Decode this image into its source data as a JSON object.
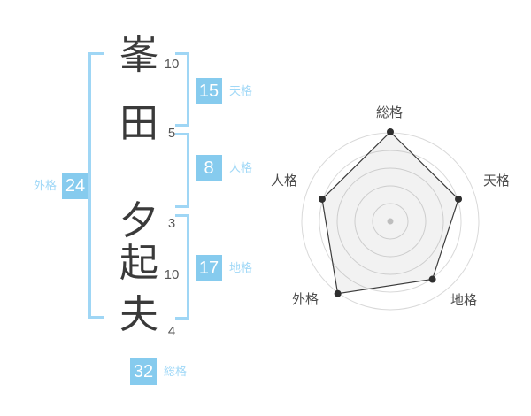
{
  "name": {
    "full_name": "峯田 夕起夫",
    "characters": [
      {
        "char": "峯",
        "strokes": "10"
      },
      {
        "char": "田",
        "strokes": "5"
      },
      {
        "char": "夕",
        "strokes": "3"
      },
      {
        "char": "起",
        "strokes": "10"
      },
      {
        "char": "夫",
        "strokes": "4"
      }
    ]
  },
  "kaku": {
    "tenkaku": {
      "label": "天格",
      "value": "15"
    },
    "jinkaku": {
      "label": "人格",
      "value": "8"
    },
    "chikaku": {
      "label": "地格",
      "value": "17"
    },
    "gaikaku": {
      "label": "外格",
      "value": "24"
    },
    "soukaku": {
      "label": "総格",
      "value": "32"
    }
  },
  "colors": {
    "box_blue": "#86cbee",
    "bracket_blue": "#9fd6f5",
    "label_blue": "#a0d8f7",
    "kanji_gray": "#3a3a3a",
    "stroke_num_gray": "#555555"
  },
  "chart_data": {
    "type": "radar",
    "categories": [
      "総格",
      "天格",
      "地格",
      "外格",
      "人格"
    ],
    "values": [
      32,
      15,
      17,
      24,
      8
    ],
    "scores": [
      5,
      4,
      4,
      5,
      4
    ],
    "score_max": 5,
    "ring_radii": [
      20,
      40,
      60,
      80,
      100
    ],
    "grid": "concentric circles, no spokes",
    "legend_position": "none",
    "grid_color": "#d9d9d9",
    "polygon_stroke": "#3c3c3c",
    "polygon_fill": "rgba(0,0,0,0.05)",
    "dot_color": "#2f2f2f",
    "center_dot_color": "#c9c9c9"
  }
}
